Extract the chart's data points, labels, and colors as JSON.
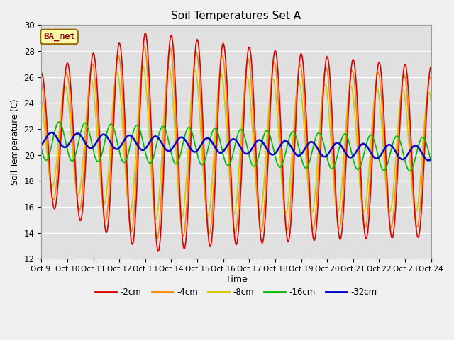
{
  "title": "Soil Temperatures Set A",
  "xlabel": "Time",
  "ylabel": "Soil Temperature (C)",
  "ylim": [
    12,
    30
  ],
  "xlim": [
    0,
    360
  ],
  "annotation": "BA_met",
  "series": [
    {
      "label": "-2cm",
      "color": "#dd0000",
      "lw": 1.2
    },
    {
      "label": "-4cm",
      "color": "#ff8800",
      "lw": 1.2
    },
    {
      "label": "-8cm",
      "color": "#cccc00",
      "lw": 1.2
    },
    {
      "label": "-16cm",
      "color": "#00bb00",
      "lw": 1.2
    },
    {
      "label": "-32cm",
      "color": "#0000cc",
      "lw": 1.8
    }
  ],
  "xtick_positions": [
    0,
    24,
    48,
    72,
    96,
    120,
    144,
    168,
    192,
    216,
    240,
    264,
    288,
    312,
    336,
    360
  ],
  "xtick_labels": [
    "Oct 9 ",
    "Oct 10",
    "Oct 11",
    "Oct 12",
    "Oct 13",
    "Oct 14",
    "Oct 15",
    "Oct 16",
    "Oct 17",
    "Oct 18",
    "Oct 19",
    "Oct 20",
    "Oct 21",
    "Oct 22",
    "Oct 23",
    "Oct 24"
  ],
  "ytick_positions": [
    12,
    14,
    16,
    18,
    20,
    22,
    24,
    26,
    28,
    30
  ],
  "fig_bg": "#f0f0f0",
  "plot_bg": "#e0e0e0"
}
